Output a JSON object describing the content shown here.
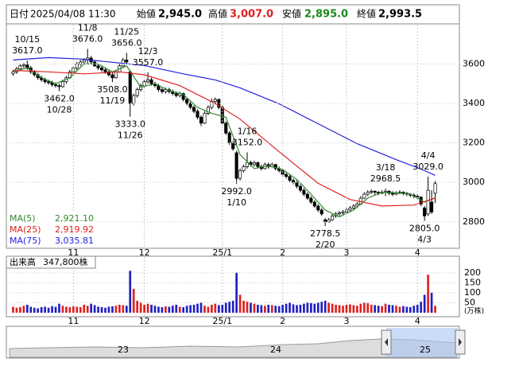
{
  "header": {
    "date_label": "日付",
    "date": "2025/04/08 11:30",
    "open_label": "始値",
    "open": "2,945.0",
    "high_label": "高値",
    "high": "3,007.0",
    "low_label": "安値",
    "low": "2,895.0",
    "close_label": "終値",
    "close": "2,993.5"
  },
  "chart_data": {
    "type": "candlestick",
    "up_color": "#ffffff",
    "down_color": "#000000",
    "xlim": [
      -1,
      120
    ],
    "xticks": [
      {
        "value": 17,
        "label": "11"
      },
      {
        "value": 37,
        "label": "12"
      },
      {
        "value": 59,
        "label": "25/1"
      },
      {
        "value": 76,
        "label": "2"
      },
      {
        "value": 94,
        "label": "3"
      },
      {
        "value": 114,
        "label": "4"
      }
    ],
    "ylim": [
      2670,
      3795
    ],
    "yticks": [
      2800,
      3000,
      3200,
      3400,
      3600
    ],
    "grid": true,
    "candles": [
      [
        3550,
        3570,
        3540,
        3560
      ],
      [
        3560,
        3585,
        3550,
        3575
      ],
      [
        3575,
        3600,
        3565,
        3590
      ],
      [
        3590,
        3605,
        3580,
        3595
      ],
      [
        3595,
        3617,
        3570,
        3580
      ],
      [
        3580,
        3590,
        3550,
        3560
      ],
      [
        3560,
        3570,
        3535,
        3545
      ],
      [
        3545,
        3555,
        3520,
        3530
      ],
      [
        3530,
        3540,
        3510,
        3520
      ],
      [
        3520,
        3530,
        3500,
        3510
      ],
      [
        3510,
        3520,
        3495,
        3505
      ],
      [
        3505,
        3515,
        3485,
        3495
      ],
      [
        3495,
        3505,
        3480,
        3490
      ],
      [
        3490,
        3500,
        3462,
        3485
      ],
      [
        3485,
        3520,
        3480,
        3510
      ],
      [
        3510,
        3540,
        3500,
        3530
      ],
      [
        3530,
        3570,
        3525,
        3560
      ],
      [
        3560,
        3590,
        3550,
        3580
      ],
      [
        3580,
        3610,
        3570,
        3600
      ],
      [
        3600,
        3620,
        3590,
        3610
      ],
      [
        3610,
        3630,
        3600,
        3620
      ],
      [
        3620,
        3676,
        3600,
        3630
      ],
      [
        3630,
        3640,
        3600,
        3610
      ],
      [
        3610,
        3620,
        3585,
        3590
      ],
      [
        3590,
        3600,
        3570,
        3580
      ],
      [
        3580,
        3590,
        3560,
        3570
      ],
      [
        3570,
        3580,
        3550,
        3560
      ],
      [
        3560,
        3570,
        3535,
        3545
      ],
      [
        3545,
        3560,
        3508,
        3530
      ],
      [
        3530,
        3570,
        3525,
        3560
      ],
      [
        3560,
        3600,
        3555,
        3590
      ],
      [
        3590,
        3630,
        3580,
        3620
      ],
      [
        3620,
        3656,
        3600,
        3610
      ],
      [
        3560,
        3570,
        3333,
        3400
      ],
      [
        3400,
        3450,
        3390,
        3440
      ],
      [
        3440,
        3480,
        3430,
        3470
      ],
      [
        3470,
        3500,
        3460,
        3490
      ],
      [
        3490,
        3520,
        3480,
        3510
      ],
      [
        3510,
        3557,
        3500,
        3520
      ],
      [
        3520,
        3530,
        3490,
        3500
      ],
      [
        3500,
        3510,
        3480,
        3490
      ],
      [
        3490,
        3500,
        3460,
        3470
      ],
      [
        3470,
        3480,
        3450,
        3460
      ],
      [
        3460,
        3480,
        3450,
        3470
      ],
      [
        3470,
        3480,
        3450,
        3460
      ],
      [
        3460,
        3470,
        3440,
        3450
      ],
      [
        3450,
        3460,
        3430,
        3440
      ],
      [
        3440,
        3460,
        3430,
        3450
      ],
      [
        3450,
        3455,
        3410,
        3420
      ],
      [
        3420,
        3430,
        3390,
        3400
      ],
      [
        3400,
        3410,
        3370,
        3380
      ],
      [
        3380,
        3390,
        3350,
        3360
      ],
      [
        3360,
        3370,
        3320,
        3330
      ],
      [
        3330,
        3340,
        3285,
        3300
      ],
      [
        3300,
        3360,
        3295,
        3350
      ],
      [
        3350,
        3390,
        3340,
        3380
      ],
      [
        3380,
        3425,
        3370,
        3410
      ],
      [
        3410,
        3430,
        3395,
        3420
      ],
      [
        3420,
        3425,
        3370,
        3380
      ],
      [
        3380,
        3390,
        3290,
        3300
      ],
      [
        3300,
        3310,
        3240,
        3250
      ],
      [
        3250,
        3260,
        3190,
        3200
      ],
      [
        3200,
        3210,
        3160,
        3170
      ],
      [
        3150,
        3160,
        2992,
        3020
      ],
      [
        3020,
        3070,
        3010,
        3060
      ],
      [
        3060,
        3090,
        3050,
        3080
      ],
      [
        3080,
        3152,
        3070,
        3100
      ],
      [
        3100,
        3110,
        3080,
        3090
      ],
      [
        3090,
        3110,
        3080,
        3100
      ],
      [
        3100,
        3105,
        3070,
        3080
      ],
      [
        3080,
        3090,
        3060,
        3070
      ],
      [
        3070,
        3100,
        3065,
        3090
      ],
      [
        3090,
        3100,
        3070,
        3080
      ],
      [
        3080,
        3100,
        3075,
        3090
      ],
      [
        3090,
        3095,
        3060,
        3070
      ],
      [
        3070,
        3080,
        3050,
        3060
      ],
      [
        3060,
        3070,
        3030,
        3040
      ],
      [
        3040,
        3050,
        3020,
        3030
      ],
      [
        3030,
        3040,
        3000,
        3010
      ],
      [
        3010,
        3020,
        2990,
        3000
      ],
      [
        3000,
        3010,
        2970,
        2980
      ],
      [
        2980,
        2990,
        2950,
        2960
      ],
      [
        2960,
        2970,
        2930,
        2940
      ],
      [
        2940,
        2950,
        2910,
        2920
      ],
      [
        2920,
        2930,
        2890,
        2900
      ],
      [
        2900,
        2910,
        2870,
        2880
      ],
      [
        2880,
        2890,
        2850,
        2860
      ],
      [
        2860,
        2870,
        2830,
        2840
      ],
      [
        2810,
        2820,
        2778.5,
        2800
      ],
      [
        2800,
        2820,
        2795,
        2810
      ],
      [
        2810,
        2840,
        2805,
        2830
      ],
      [
        2830,
        2850,
        2820,
        2840
      ],
      [
        2840,
        2855,
        2830,
        2845
      ],
      [
        2845,
        2860,
        2835,
        2850
      ],
      [
        2850,
        2870,
        2840,
        2860
      ],
      [
        2860,
        2880,
        2850,
        2870
      ],
      [
        2870,
        2890,
        2860,
        2880
      ],
      [
        2880,
        2900,
        2870,
        2890
      ],
      [
        2890,
        2930,
        2885,
        2920
      ],
      [
        2920,
        2950,
        2915,
        2940
      ],
      [
        2940,
        2960,
        2930,
        2950
      ],
      [
        2950,
        2965,
        2940,
        2955
      ],
      [
        2955,
        2960,
        2935,
        2950
      ],
      [
        2950,
        2955,
        2935,
        2945
      ],
      [
        2945,
        2960,
        2940,
        2950
      ],
      [
        2950,
        2968.5,
        2930,
        2955
      ],
      [
        2955,
        2960,
        2935,
        2945
      ],
      [
        2945,
        2955,
        2930,
        2940
      ],
      [
        2940,
        2955,
        2935,
        2945
      ],
      [
        2945,
        2960,
        2940,
        2950
      ],
      [
        2950,
        2955,
        2935,
        2945
      ],
      [
        2945,
        2950,
        2930,
        2940
      ],
      [
        2940,
        2945,
        2925,
        2935
      ],
      [
        2935,
        2945,
        2920,
        2930
      ],
      [
        2930,
        2940,
        2915,
        2925
      ],
      [
        2925,
        2930,
        2880,
        2890
      ],
      [
        2870,
        2880,
        2805,
        2830
      ],
      [
        2840,
        3029,
        2830,
        2960
      ],
      [
        2900,
        2960,
        2840,
        2850
      ],
      [
        2945,
        3007,
        2895,
        2993.5
      ]
    ],
    "annotations": [
      {
        "x": 4,
        "value": 3617,
        "label": "3617.0",
        "date": "10/15"
      },
      {
        "x": 13,
        "value": 3462,
        "label": "3462.0",
        "date": "10/28"
      },
      {
        "x": 21,
        "value": 3676,
        "label": "3676.0",
        "date": "11/8"
      },
      {
        "x": 28,
        "value": 3508,
        "label": "3508.0",
        "date": "11/19"
      },
      {
        "x": 32,
        "value": 3656,
        "label": "3656.0",
        "date": "11/25"
      },
      {
        "x": 33,
        "value": 3333,
        "label": "3333.0",
        "date": "11/26"
      },
      {
        "x": 38,
        "value": 3557,
        "label": "3557.0",
        "date": "12/3"
      },
      {
        "x": 63,
        "value": 2992,
        "label": "2992.0",
        "date": "1/10"
      },
      {
        "x": 66,
        "value": 3152,
        "label": "3152.0",
        "date": "1/16"
      },
      {
        "x": 88,
        "value": 2778.5,
        "label": "2778.5",
        "date": "2/20"
      },
      {
        "x": 105,
        "value": 2968.5,
        "label": "2968.5",
        "date": "3/18"
      },
      {
        "x": 116,
        "value": 2805,
        "label": "2805.0",
        "date": "4/3"
      },
      {
        "x": 117,
        "value": 3029,
        "label": "3029.0",
        "date": "4/4"
      }
    ],
    "ma": [
      {
        "name": "MA(5)",
        "color": "#2e8b2e",
        "last_label": "2,921.10",
        "x": [
          0,
          4,
          8,
          12,
          16,
          20,
          24,
          28,
          32,
          36,
          40,
          44,
          48,
          52,
          56,
          60,
          64,
          68,
          72,
          76,
          80,
          84,
          88,
          92,
          96,
          100,
          104,
          108,
          112,
          116,
          119
        ],
        "values": [
          3560,
          3580,
          3530,
          3500,
          3530,
          3600,
          3600,
          3560,
          3590,
          3482,
          3500,
          3465,
          3445,
          3380,
          3350,
          3330,
          3140,
          3070,
          3085,
          3065,
          3015,
          2940,
          2860,
          2825,
          2860,
          2920,
          2950,
          2947,
          2940,
          2900,
          2921.1
        ]
      },
      {
        "name": "MA(25)",
        "color": "#e02020",
        "last_label": "2,919.92",
        "x": [
          0,
          10,
          20,
          30,
          37,
          47,
          57,
          64,
          75,
          86,
          95,
          104,
          113,
          119
        ],
        "values": [
          3567,
          3560,
          3550,
          3560,
          3545,
          3490,
          3400,
          3320,
          3155,
          2995,
          2913,
          2880,
          2885,
          2919.92
        ]
      },
      {
        "name": "MA(75)",
        "color": "#2020e0",
        "last_label": "3,035.81",
        "x": [
          0,
          10,
          19,
          37,
          48,
          57,
          64,
          75,
          86,
          97,
          108,
          115,
          119
        ],
        "values": [
          3620,
          3632,
          3625,
          3592,
          3550,
          3519,
          3479,
          3398,
          3297,
          3196,
          3115,
          3067,
          3035.81
        ]
      }
    ],
    "volume": {
      "title": "出来高",
      "current": "347,800株",
      "unit": "(万株)",
      "up_color": "#e02020",
      "down_color": "#2020c0",
      "ylim": [
        0,
        275
      ],
      "yticks": [
        50,
        100,
        150,
        200
      ],
      "values": [
        30,
        25,
        28,
        35,
        40,
        30,
        25,
        22,
        28,
        30,
        25,
        33,
        30,
        45,
        35,
        30,
        28,
        32,
        30,
        28,
        40,
        35,
        45,
        38,
        30,
        28,
        25,
        30,
        32,
        35,
        40,
        38,
        35,
        210,
        120,
        60,
        50,
        40,
        45,
        40,
        35,
        30,
        28,
        32,
        30,
        35,
        40,
        30,
        28,
        35,
        38,
        40,
        45,
        50,
        35,
        30,
        40,
        45,
        38,
        40,
        50,
        55,
        60,
        200,
        90,
        60,
        55,
        50,
        45,
        40,
        38,
        35,
        40,
        38,
        35,
        33,
        40,
        45,
        50,
        42,
        38,
        40,
        45,
        50,
        48,
        45,
        50,
        55,
        60,
        50,
        45,
        40,
        38,
        35,
        40,
        42,
        38,
        35,
        45,
        50,
        48,
        40,
        38,
        35,
        33,
        45,
        40,
        38,
        35,
        30,
        33,
        30,
        28,
        35,
        40,
        55,
        90,
        190,
        100,
        34.78
      ]
    }
  },
  "navigator": {
    "labels": [
      "23",
      "24",
      "25"
    ]
  }
}
